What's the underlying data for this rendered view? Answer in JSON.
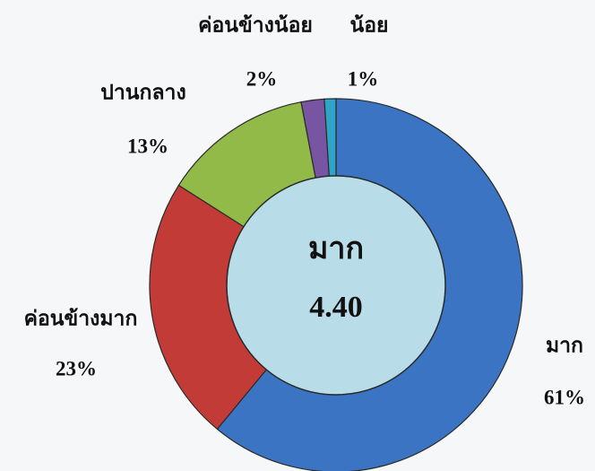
{
  "chart_data": {
    "type": "donut",
    "categories": [
      "มาก",
      "ค่อนข้างมาก",
      "ปานกลาง",
      "ค่อนข้างน้อย",
      "น้อย"
    ],
    "values": [
      61,
      23,
      13,
      2,
      1
    ],
    "value_labels": [
      "61%",
      "23%",
      "13%",
      "2%",
      "1%"
    ],
    "colors": [
      "#3b74c2",
      "#c23b37",
      "#92ba48",
      "#7855a3",
      "#2ea5c8"
    ],
    "center_label": "มาก",
    "center_value": "4.40"
  }
}
